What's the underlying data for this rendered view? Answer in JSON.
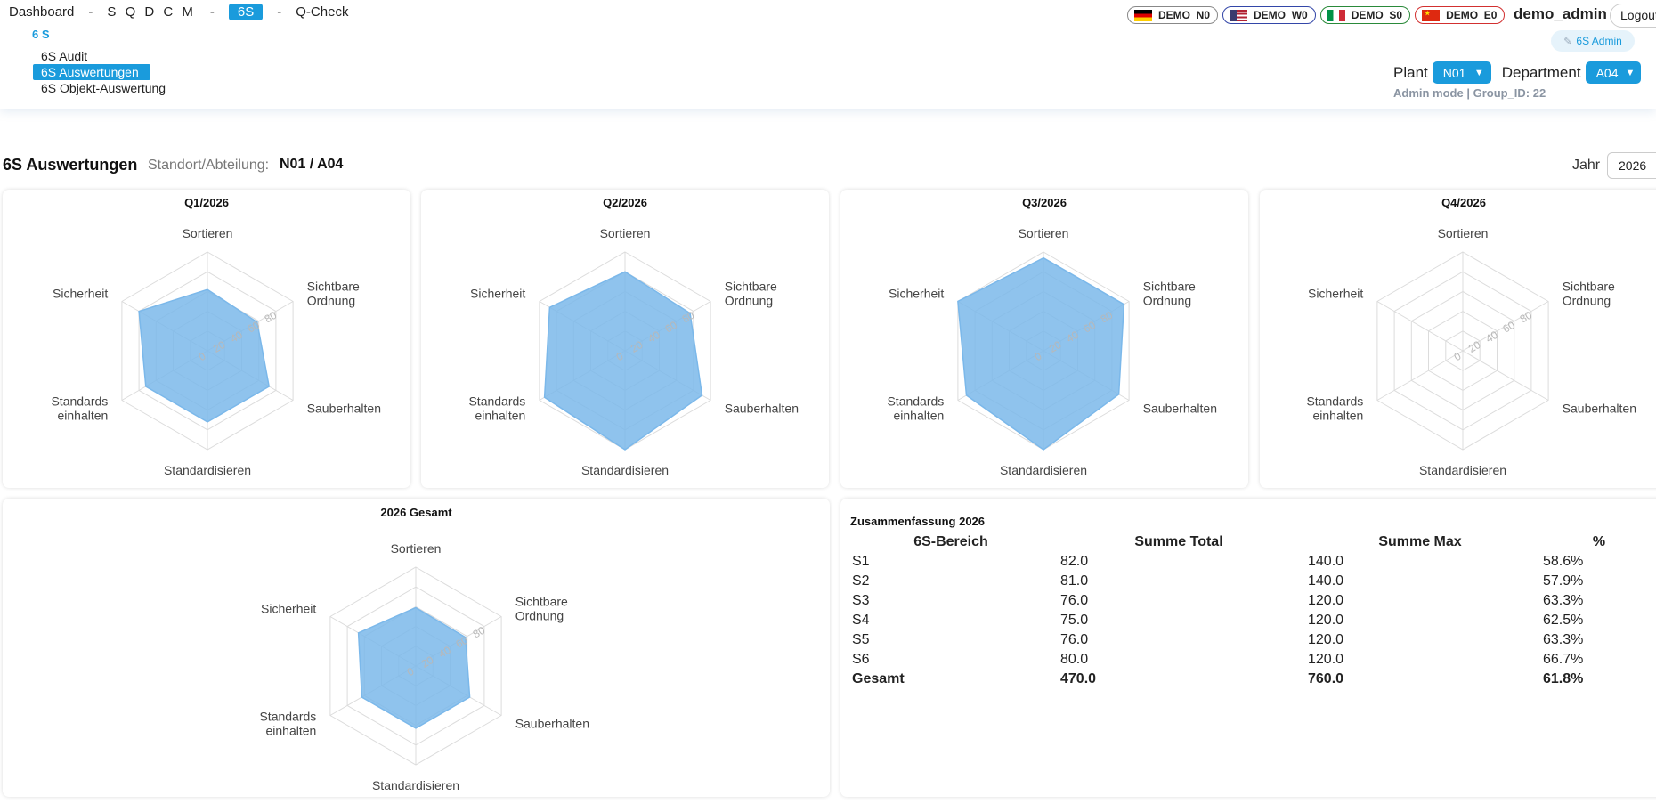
{
  "nav": {
    "breadcrumbs": [
      {
        "label": "Dashboard"
      },
      {
        "label": "S Q D C M"
      },
      {
        "label": "6S",
        "active": true
      },
      {
        "label": "Q-Check"
      }
    ],
    "separator": "-",
    "menu_title": "6 S",
    "submenu": [
      {
        "label": "6S Audit"
      },
      {
        "label": "6S Auswertungen",
        "selected": true
      },
      {
        "label": "6S Objekt-Auswertung"
      }
    ],
    "flags": [
      {
        "code": "de",
        "label": "DEMO_N0"
      },
      {
        "code": "us",
        "label": "DEMO_W0"
      },
      {
        "code": "it",
        "label": "DEMO_S0"
      },
      {
        "code": "cn",
        "label": "DEMO_E0"
      }
    ],
    "user": "demo_admin",
    "logout_label": "Logout",
    "admin_button": "6S Admin",
    "plant_label": "Plant",
    "plant_value": "N01",
    "department_label": "Department",
    "department_value": "A04",
    "admin_mode": "Admin mode | Group_ID: 22"
  },
  "page": {
    "title": "6S Auswertungen",
    "location_label": "Standort/Abteilung:",
    "location_value": "N01 / A04",
    "year_label": "Jahr",
    "year_value": "2026"
  },
  "chart_data": [
    {
      "type": "radar",
      "title": "Q1/2026",
      "axes": [
        "Sortieren",
        "Sichtbare Ordnung",
        "Sauberhalten",
        "Standardisieren",
        "Standards einhalten",
        "Sicherheit"
      ],
      "ticks": [
        "0",
        "20",
        "40",
        "60",
        "80"
      ],
      "range": [
        0,
        100
      ],
      "values": [
        62,
        58,
        72,
        72,
        72,
        80
      ],
      "fill_color": "#7bb8ea"
    },
    {
      "type": "radar",
      "title": "Q2/2026",
      "axes": [
        "Sortieren",
        "Sichtbare Ordnung",
        "Sauberhalten",
        "Standardisieren",
        "Standards einhalten",
        "Sicherheit"
      ],
      "ticks": [
        "0",
        "20",
        "40",
        "60",
        "80"
      ],
      "range": [
        0,
        100
      ],
      "values": [
        80,
        76,
        90,
        100,
        94,
        88
      ],
      "fill_color": "#7bb8ea"
    },
    {
      "type": "radar",
      "title": "Q3/2026",
      "axes": [
        "Sortieren",
        "Sichtbare Ordnung",
        "Sauberhalten",
        "Standardisieren",
        "Standards einhalten",
        "Sicherheit"
      ],
      "ticks": [
        "0",
        "20",
        "40",
        "60",
        "80"
      ],
      "range": [
        0,
        100
      ],
      "values": [
        94,
        94,
        88,
        100,
        90,
        100
      ],
      "fill_color": "#7bb8ea"
    },
    {
      "type": "radar",
      "title": "Q4/2026",
      "axes": [
        "Sortieren",
        "Sichtbare Ordnung",
        "Sauberhalten",
        "Standardisieren",
        "Standards einhalten",
        "Sicherheit"
      ],
      "ticks": [
        "0",
        "20",
        "40",
        "60",
        "80"
      ],
      "range": [
        0,
        100
      ],
      "values": [
        0,
        0,
        0,
        0,
        0,
        0
      ],
      "fill_color": "#7bb8ea"
    },
    {
      "type": "radar",
      "title": "2026 Gesamt",
      "axes": [
        "Sortieren",
        "Sichtbare Ordnung",
        "Sauberhalten",
        "Standardisieren",
        "Standards einhalten",
        "Sicherheit"
      ],
      "ticks": [
        "0",
        "20",
        "40",
        "60",
        "80"
      ],
      "range": [
        0,
        100
      ],
      "values": [
        59,
        58,
        63,
        63,
        63,
        67
      ],
      "fill_color": "#7bb8ea"
    }
  ],
  "summary": {
    "title": "Zusammenfassung 2026",
    "headers": [
      "6S-Bereich",
      "Summe Total",
      "Summe Max",
      "%"
    ],
    "rows": [
      [
        "S1",
        "82.0",
        "140.0",
        "58.6%"
      ],
      [
        "S2",
        "81.0",
        "140.0",
        "57.9%"
      ],
      [
        "S3",
        "76.0",
        "120.0",
        "63.3%"
      ],
      [
        "S4",
        "75.0",
        "120.0",
        "62.5%"
      ],
      [
        "S5",
        "76.0",
        "120.0",
        "63.3%"
      ],
      [
        "S6",
        "80.0",
        "120.0",
        "66.7%"
      ]
    ],
    "total": [
      "Gesamt",
      "470.0",
      "760.0",
      "61.8%"
    ]
  }
}
